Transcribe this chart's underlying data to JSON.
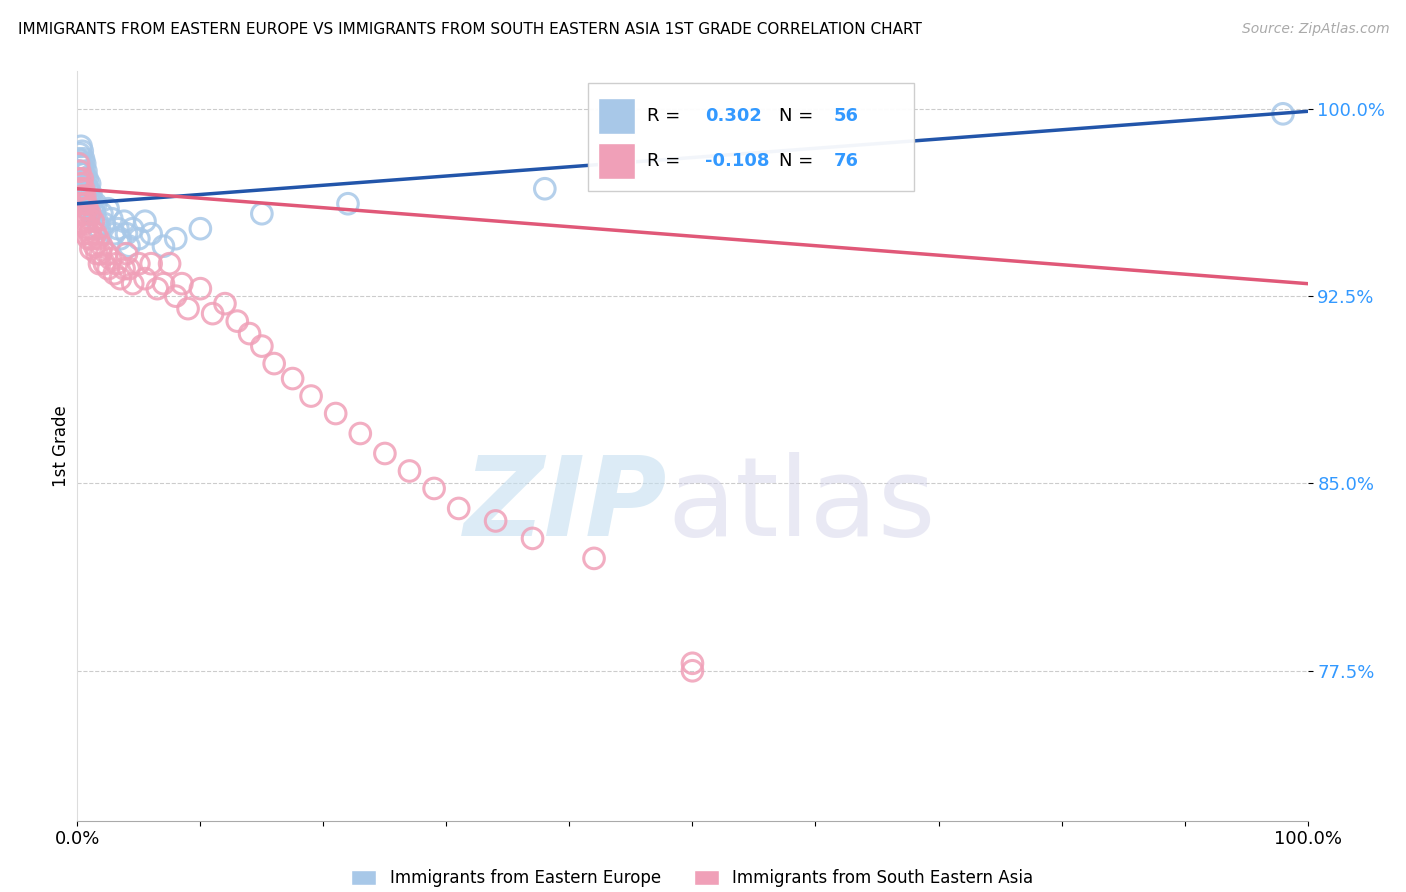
{
  "title": "IMMIGRANTS FROM EASTERN EUROPE VS IMMIGRANTS FROM SOUTH EASTERN ASIA 1ST GRADE CORRELATION CHART",
  "source": "Source: ZipAtlas.com",
  "ylabel": "1st Grade",
  "xlim": [
    0.0,
    1.0
  ],
  "ylim": [
    0.715,
    1.015
  ],
  "yticks": [
    0.775,
    0.85,
    0.925,
    1.0
  ],
  "ytick_labels": [
    "77.5%",
    "85.0%",
    "92.5%",
    "100.0%"
  ],
  "blue_R": 0.302,
  "blue_N": 56,
  "pink_R": -0.108,
  "pink_N": 76,
  "blue_color": "#a8c8e8",
  "pink_color": "#f0a0b8",
  "blue_line_color": "#2255aa",
  "pink_line_color": "#e05878",
  "legend_label_blue": "Immigrants from Eastern Europe",
  "legend_label_pink": "Immigrants from South Eastern Asia",
  "blue_x": [
    0.001,
    0.001,
    0.002,
    0.002,
    0.002,
    0.003,
    0.003,
    0.003,
    0.003,
    0.004,
    0.004,
    0.004,
    0.005,
    0.005,
    0.005,
    0.006,
    0.006,
    0.006,
    0.007,
    0.007,
    0.007,
    0.008,
    0.008,
    0.009,
    0.009,
    0.01,
    0.01,
    0.011,
    0.011,
    0.012,
    0.013,
    0.014,
    0.015,
    0.016,
    0.018,
    0.02,
    0.022,
    0.025,
    0.028,
    0.03,
    0.033,
    0.035,
    0.038,
    0.04,
    0.042,
    0.045,
    0.05,
    0.055,
    0.06,
    0.07,
    0.08,
    0.1,
    0.15,
    0.22,
    0.38,
    0.98
  ],
  "blue_y": [
    0.98,
    0.975,
    0.982,
    0.978,
    0.972,
    0.985,
    0.979,
    0.975,
    0.968,
    0.983,
    0.977,
    0.97,
    0.98,
    0.974,
    0.966,
    0.978,
    0.972,
    0.964,
    0.975,
    0.969,
    0.962,
    0.972,
    0.965,
    0.968,
    0.96,
    0.97,
    0.963,
    0.966,
    0.958,
    0.963,
    0.96,
    0.958,
    0.962,
    0.955,
    0.952,
    0.958,
    0.954,
    0.96,
    0.956,
    0.95,
    0.952,
    0.948,
    0.955,
    0.95,
    0.945,
    0.952,
    0.948,
    0.955,
    0.95,
    0.945,
    0.948,
    0.952,
    0.958,
    0.962,
    0.968,
    0.998
  ],
  "pink_x": [
    0.001,
    0.001,
    0.002,
    0.002,
    0.002,
    0.003,
    0.003,
    0.003,
    0.004,
    0.004,
    0.004,
    0.005,
    0.005,
    0.005,
    0.006,
    0.006,
    0.006,
    0.007,
    0.007,
    0.008,
    0.008,
    0.009,
    0.009,
    0.01,
    0.01,
    0.011,
    0.011,
    0.012,
    0.013,
    0.014,
    0.015,
    0.016,
    0.017,
    0.018,
    0.019,
    0.02,
    0.022,
    0.024,
    0.025,
    0.027,
    0.03,
    0.032,
    0.035,
    0.038,
    0.04,
    0.042,
    0.045,
    0.05,
    0.055,
    0.06,
    0.065,
    0.07,
    0.075,
    0.08,
    0.085,
    0.09,
    0.1,
    0.11,
    0.12,
    0.13,
    0.14,
    0.15,
    0.16,
    0.175,
    0.19,
    0.21,
    0.23,
    0.25,
    0.27,
    0.29,
    0.31,
    0.34,
    0.37,
    0.42,
    0.5,
    0.5
  ],
  "pink_y": [
    0.978,
    0.972,
    0.975,
    0.968,
    0.962,
    0.97,
    0.964,
    0.958,
    0.972,
    0.965,
    0.958,
    0.968,
    0.962,
    0.954,
    0.965,
    0.958,
    0.95,
    0.962,
    0.955,
    0.96,
    0.952,
    0.956,
    0.948,
    0.958,
    0.95,
    0.952,
    0.944,
    0.948,
    0.955,
    0.945,
    0.95,
    0.942,
    0.948,
    0.938,
    0.942,
    0.945,
    0.938,
    0.942,
    0.936,
    0.94,
    0.934,
    0.938,
    0.932,
    0.936,
    0.942,
    0.936,
    0.93,
    0.938,
    0.932,
    0.938,
    0.928,
    0.93,
    0.938,
    0.925,
    0.93,
    0.92,
    0.928,
    0.918,
    0.922,
    0.915,
    0.91,
    0.905,
    0.898,
    0.892,
    0.885,
    0.878,
    0.87,
    0.862,
    0.855,
    0.848,
    0.84,
    0.835,
    0.828,
    0.82,
    0.775,
    0.778
  ]
}
